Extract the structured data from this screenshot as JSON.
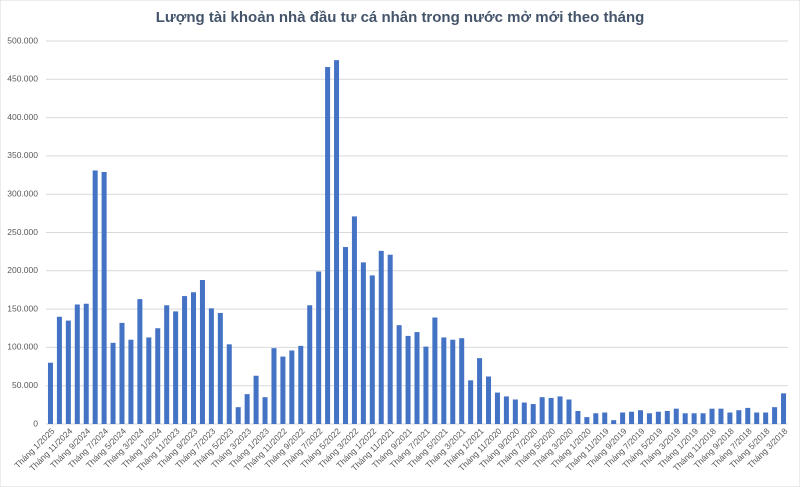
{
  "chart_data": {
    "type": "bar",
    "title": "Lượng tài khoản nhà đầu tư cá nhân trong nước mở mới theo tháng",
    "categories": [
      "Tháng 1/2025",
      null,
      "Tháng 11/2024",
      null,
      "Tháng 9/2024",
      null,
      "Tháng 7/2024",
      null,
      "Tháng 5/2024",
      null,
      "Tháng 3/2024",
      null,
      "Tháng 1/2024",
      null,
      "Tháng 11/2023",
      null,
      "Tháng 9/2023",
      null,
      "Tháng 7/2023",
      null,
      "Tháng 5/2023",
      null,
      "Tháng 3/2023",
      null,
      "Tháng 1/2023",
      null,
      "Tháng 11/2022",
      null,
      "Tháng 9/2022",
      null,
      "Tháng 7/2022",
      null,
      "Tháng 5/2022",
      null,
      "Tháng 3/2022",
      null,
      "Tháng 1/2022",
      null,
      "Tháng 11/2021",
      null,
      "Tháng 9/2021",
      null,
      "Tháng 7/2021",
      null,
      "Tháng 5/2021",
      null,
      "Tháng 3/2021",
      null,
      "Tháng 1/2021",
      null,
      "Tháng 11/2020",
      null,
      "Tháng 9/2020",
      null,
      "Tháng 7/2020",
      null,
      "Tháng 5/2020",
      null,
      "Tháng 3/2020",
      null,
      "Tháng 1/2020",
      null,
      "Tháng 11/2019",
      null,
      "Tháng 9/2019",
      null,
      "Tháng 7/2019",
      null,
      "Tháng 5/2019",
      null,
      "Tháng 3/2019",
      null,
      "Tháng 1/2019",
      null,
      "Tháng 11/2018",
      null,
      "Tháng 9/2018",
      null,
      "Tháng 7/2018",
      null,
      "Tháng 5/2018",
      null,
      "Tháng 3/2018"
    ],
    "values": [
      80000,
      140000,
      135000,
      156000,
      157000,
      331000,
      329000,
      106000,
      132000,
      110000,
      163000,
      113000,
      125000,
      155000,
      147000,
      167000,
      172000,
      188000,
      151000,
      145000,
      104000,
      22000,
      39000,
      63000,
      35000,
      99000,
      88000,
      96000,
      102000,
      155000,
      199000,
      466000,
      475000,
      231000,
      271000,
      211000,
      194000,
      226000,
      221000,
      129000,
      115000,
      120000,
      101000,
      139000,
      113000,
      110000,
      112000,
      57000,
      86000,
      62000,
      41000,
      36000,
      32000,
      28000,
      26000,
      35000,
      34000,
      36000,
      32000,
      17000,
      9000,
      14000,
      15000,
      5000,
      15000,
      16000,
      18000,
      14000,
      16000,
      17000,
      20000,
      14000,
      14000,
      14000,
      20000,
      20000,
      15000,
      18000,
      21000,
      15000,
      15000,
      22000,
      40000
    ],
    "color": "#4472c4",
    "ylim": [
      0,
      500000
    ],
    "yticks": [
      0,
      {
        "value": 50000,
        "label": "50.000"
      },
      {
        "value": 100000,
        "label": "100.000"
      },
      {
        "value": 150000,
        "label": "150.000"
      },
      {
        "value": 200000,
        "label": "200.000"
      },
      {
        "value": 250000,
        "label": "250.000"
      },
      {
        "value": 300000,
        "label": "300.000"
      },
      {
        "value": 350000,
        "label": "350.000"
      },
      {
        "value": 400000,
        "label": "400.000"
      },
      {
        "value": 450000,
        "label": "450.000"
      },
      {
        "value": 500000,
        "label": "500.000"
      }
    ],
    "grid": true
  }
}
